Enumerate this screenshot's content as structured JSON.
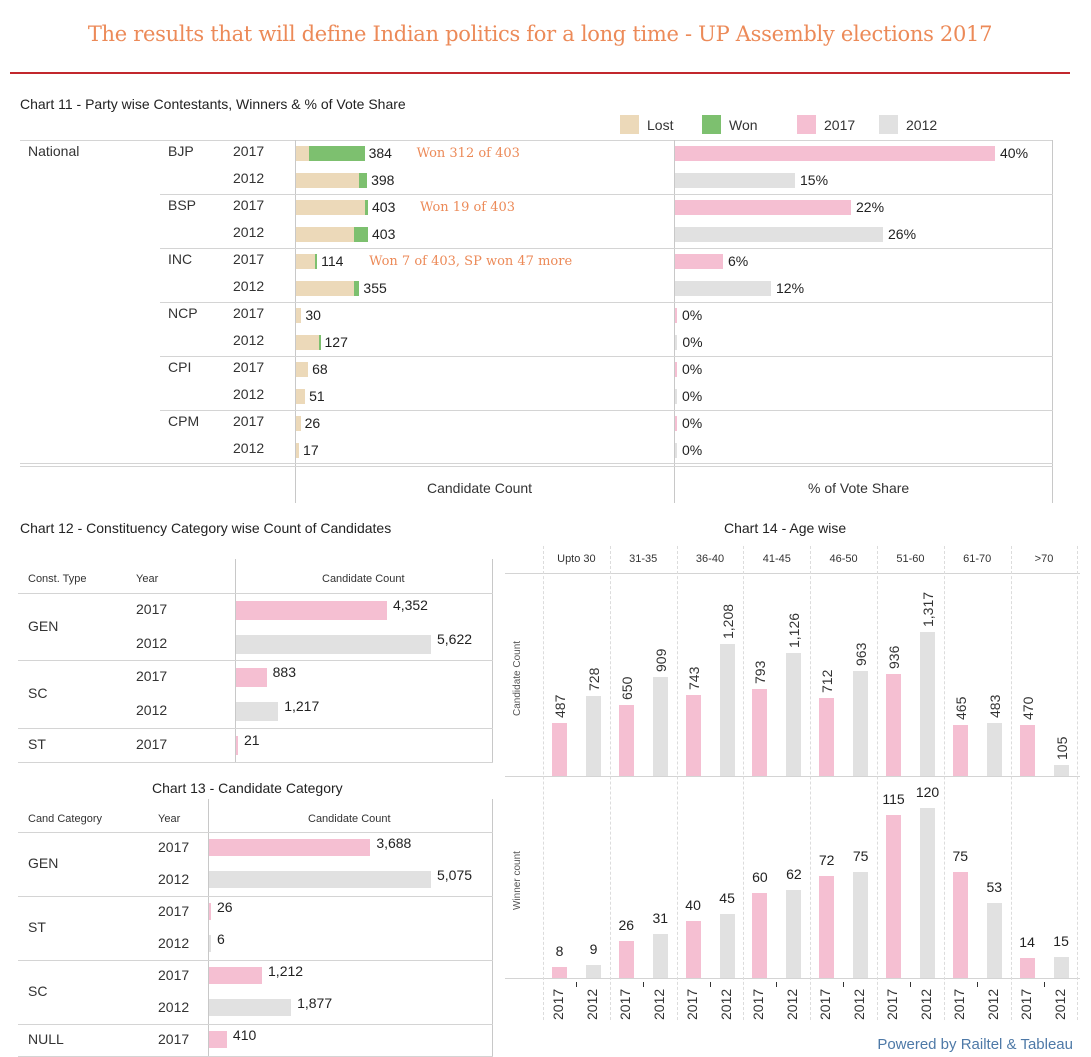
{
  "header": {
    "title": "The results that will define Indian politics for a long time - UP Assembly elections 2017"
  },
  "colors": {
    "title": "#ec8a58",
    "rule": "#c2272d",
    "lost": "#ecd9b9",
    "won": "#7dc06f",
    "y2017": "#f5bfd2",
    "y2012": "#e1e1e1",
    "annotation": "#ec8a58",
    "footer": "#4e79a7"
  },
  "legend": [
    {
      "label": "Lost",
      "color_key": "lost"
    },
    {
      "label": "Won",
      "color_key": "won"
    },
    {
      "label": "2017",
      "color_key": "y2017"
    },
    {
      "label": "2012",
      "color_key": "y2012"
    }
  ],
  "footer": "Powered by Railtel & Tableau",
  "chart_data": [
    {
      "id": "chart11",
      "type": "bar",
      "title": "Chart 11 - Party wise Contestants, Winners & % of Vote Share",
      "group_label": "National",
      "xlabel_count": "Candidate Count",
      "xlabel_share": "% of Vote Share",
      "count_max": 403,
      "share_max": 40,
      "rows": [
        {
          "party": "BJP",
          "year": "2017",
          "lost": 72,
          "won": 312,
          "total": 384,
          "total_label": "384",
          "share": 40,
          "share_label": "40%",
          "annotation": "Won 312 of 403"
        },
        {
          "party": "",
          "year": "2012",
          "lost": 351,
          "won": 47,
          "total": 398,
          "total_label": "398",
          "share": 15,
          "share_label": "15%",
          "annotation": ""
        },
        {
          "party": "BSP",
          "year": "2017",
          "lost": 384,
          "won": 19,
          "total": 403,
          "total_label": "403",
          "share": 22,
          "share_label": "22%",
          "annotation": "Won 19 of 403"
        },
        {
          "party": "",
          "year": "2012",
          "lost": 323,
          "won": 80,
          "total": 403,
          "total_label": "403",
          "share": 26,
          "share_label": "26%",
          "annotation": ""
        },
        {
          "party": "INC",
          "year": "2017",
          "lost": 107,
          "won": 7,
          "total": 114,
          "total_label": "114",
          "share": 6,
          "share_label": "6%",
          "annotation": "Won 7 of 403, SP won 47 more"
        },
        {
          "party": "",
          "year": "2012",
          "lost": 327,
          "won": 28,
          "total": 355,
          "total_label": "355",
          "share": 12,
          "share_label": "12%",
          "annotation": ""
        },
        {
          "party": "NCP",
          "year": "2017",
          "lost": 30,
          "won": 0,
          "total": 30,
          "total_label": "30",
          "share": 0.1,
          "share_label": "0%",
          "annotation": ""
        },
        {
          "party": "",
          "year": "2012",
          "lost": 126,
          "won": 1,
          "total": 127,
          "total_label": "127",
          "share": 0.3,
          "share_label": "0%",
          "annotation": ""
        },
        {
          "party": "CPI",
          "year": "2017",
          "lost": 68,
          "won": 0,
          "total": 68,
          "total_label": "68",
          "share": 0.1,
          "share_label": "0%",
          "annotation": ""
        },
        {
          "party": "",
          "year": "2012",
          "lost": 51,
          "won": 0,
          "total": 51,
          "total_label": "51",
          "share": 0.1,
          "share_label": "0%",
          "annotation": ""
        },
        {
          "party": "CPM",
          "year": "2017",
          "lost": 26,
          "won": 0,
          "total": 26,
          "total_label": "26",
          "share": 0.1,
          "share_label": "0%",
          "annotation": ""
        },
        {
          "party": "",
          "year": "2012",
          "lost": 17,
          "won": 0,
          "total": 17,
          "total_label": "17",
          "share": 0.1,
          "share_label": "0%",
          "annotation": ""
        }
      ]
    },
    {
      "id": "chart12",
      "type": "bar",
      "title": "Chart 12 - Constituency Category wise Count of Candidates",
      "headers": [
        "Const. Type",
        "Year",
        "Candidate Count"
      ],
      "max": 5622,
      "groups": [
        {
          "category": "GEN",
          "rows": [
            {
              "year": "2017",
              "value": 4352,
              "label": "4,352"
            },
            {
              "year": "2012",
              "value": 5622,
              "label": "5,622"
            }
          ]
        },
        {
          "category": "SC",
          "rows": [
            {
              "year": "2017",
              "value": 883,
              "label": "883"
            },
            {
              "year": "2012",
              "value": 1217,
              "label": "1,217"
            }
          ]
        },
        {
          "category": "ST",
          "rows": [
            {
              "year": "2017",
              "value": 21,
              "label": "21"
            }
          ]
        }
      ]
    },
    {
      "id": "chart13",
      "type": "bar",
      "title": "Chart 13 - Candidate Category",
      "headers": [
        "Cand Category",
        "Year",
        "Candidate Count"
      ],
      "max": 5075,
      "groups": [
        {
          "category": "GEN",
          "rows": [
            {
              "year": "2017",
              "value": 3688,
              "label": "3,688"
            },
            {
              "year": "2012",
              "value": 5075,
              "label": "5,075"
            }
          ]
        },
        {
          "category": "ST",
          "rows": [
            {
              "year": "2017",
              "value": 26,
              "label": "26"
            },
            {
              "year": "2012",
              "value": 6,
              "label": "6"
            }
          ]
        },
        {
          "category": "SC",
          "rows": [
            {
              "year": "2017",
              "value": 1212,
              "label": "1,212"
            },
            {
              "year": "2012",
              "value": 1877,
              "label": "1,877"
            }
          ]
        },
        {
          "category": "NULL",
          "rows": [
            {
              "year": "2017",
              "value": 410,
              "label": "410"
            }
          ]
        }
      ]
    },
    {
      "id": "chart14",
      "type": "bar",
      "title": "Chart 14 - Age wise",
      "ylabel_top": "Candidate Count",
      "ylabel_bottom": "Winner count",
      "years": [
        "2017",
        "2012"
      ],
      "categories": [
        "Upto 30",
        "31-35",
        "36-40",
        "41-45",
        "46-50",
        "51-60",
        "61-70",
        ">70"
      ],
      "candidate_max": 1317,
      "winner_max": 120,
      "series": [
        {
          "name": "Candidate Count",
          "values_2017": [
            487,
            650,
            743,
            793,
            712,
            936,
            465,
            470
          ],
          "values_2012": [
            728,
            909,
            1208,
            1126,
            963,
            1317,
            483,
            105
          ],
          "labels_2017": [
            "487",
            "650",
            "743",
            "793",
            "712",
            "936",
            "465",
            "470"
          ],
          "labels_2012": [
            "728",
            "909",
            "1,208",
            "1,126",
            "963",
            "1,317",
            "483",
            "105"
          ]
        },
        {
          "name": "Winner count",
          "values_2017": [
            8,
            26,
            40,
            60,
            72,
            115,
            75,
            14
          ],
          "values_2012": [
            9,
            31,
            45,
            62,
            75,
            120,
            53,
            15
          ],
          "labels_2017": [
            "8",
            "26",
            "40",
            "60",
            "72",
            "115",
            "75",
            "14"
          ],
          "labels_2012": [
            "9",
            "31",
            "45",
            "62",
            "75",
            "120",
            "53",
            "15"
          ]
        }
      ]
    }
  ]
}
